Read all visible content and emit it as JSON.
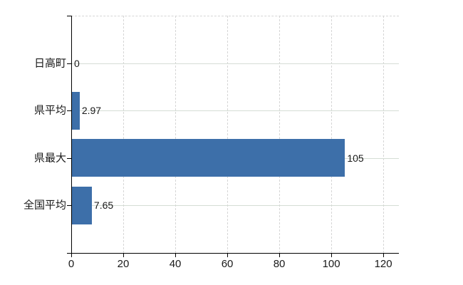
{
  "chart_data": {
    "type": "bar",
    "orientation": "horizontal",
    "title": "",
    "xlabel": "",
    "ylabel": "",
    "categories": [
      "日高町",
      "県平均",
      "県最大",
      "全国平均"
    ],
    "values": [
      0,
      2.97,
      105,
      7.65
    ],
    "value_labels": [
      "0",
      "2.97",
      "105",
      "7.65"
    ],
    "x_ticks": [
      0,
      20,
      40,
      60,
      80,
      100,
      120
    ],
    "xlim": [
      0,
      126
    ],
    "grid": true,
    "legend_position": "none",
    "colors": {
      "bar": "#3d6fa9",
      "axis": "#000000",
      "grid_vertical": "#d6d6d6",
      "grid_horizontal": "#d5ddd5",
      "text": "#1a1a1a",
      "background": "#ffffff"
    }
  }
}
